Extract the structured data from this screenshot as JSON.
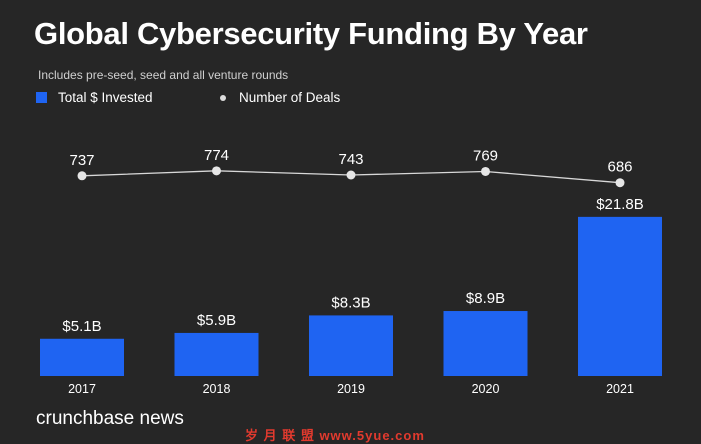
{
  "title": "Global Cybersecurity Funding By Year",
  "subtitle": "Includes pre-seed, seed and all venture rounds",
  "legend": {
    "invested_label": "Total $ Invested",
    "deals_label": "Number of Deals",
    "position": "top-left"
  },
  "brand": "crunchbase news",
  "watermark": "岁 月 联 盟  www.5yue.com",
  "colors": {
    "background": "#262626",
    "bar": "#1f64f2",
    "line": "#d8d8d8",
    "point": "#e6e6e6",
    "text": "#ffffff"
  },
  "chart_data": {
    "type": "bar",
    "title": "Global Cybersecurity Funding By Year",
    "subtitle": "Includes pre-seed, seed and all venture rounds",
    "categories": [
      "2017",
      "2018",
      "2019",
      "2020",
      "2021"
    ],
    "grid": false,
    "series": [
      {
        "name": "Total $ Invested",
        "type": "bar",
        "unit": "billion USD",
        "values": [
          5.1,
          5.9,
          8.3,
          8.9,
          21.8
        ],
        "labels": [
          "$5.1B",
          "$5.9B",
          "$8.3B",
          "$8.9B",
          "$21.8B"
        ]
      },
      {
        "name": "Number of Deals",
        "type": "line",
        "values": [
          737,
          774,
          743,
          769,
          686
        ],
        "labels": [
          "737",
          "774",
          "743",
          "769",
          "686"
        ]
      }
    ]
  }
}
